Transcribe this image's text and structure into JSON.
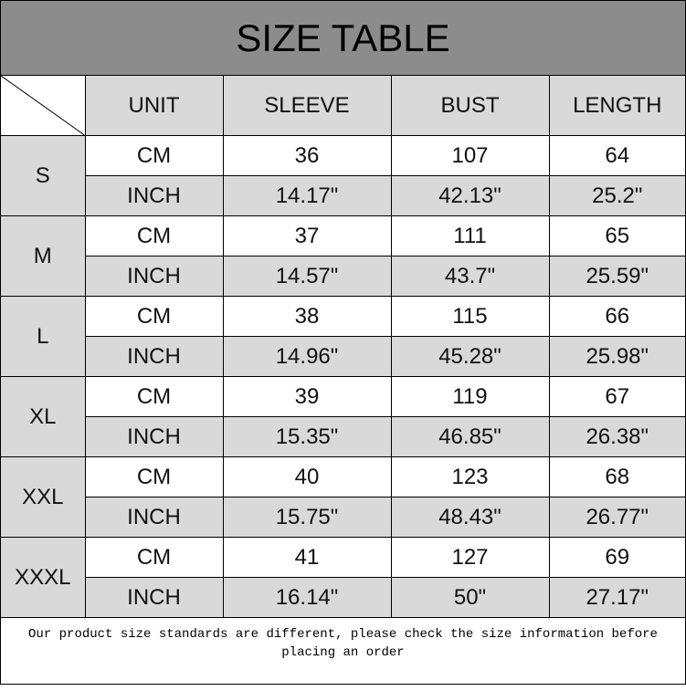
{
  "title": "SIZE TABLE",
  "headers": [
    "UNIT",
    "SLEEVE",
    "BUST",
    "LENGTH"
  ],
  "sizes": [
    {
      "size": "S",
      "cm": [
        "CM",
        "36",
        "107",
        "64"
      ],
      "inch": [
        "INCH",
        "14.17\"",
        "42.13\"",
        "25.2\""
      ]
    },
    {
      "size": "M",
      "cm": [
        "CM",
        "37",
        "111",
        "65"
      ],
      "inch": [
        "INCH",
        "14.57\"",
        "43.7\"",
        "25.59\""
      ]
    },
    {
      "size": "L",
      "cm": [
        "CM",
        "38",
        "115",
        "66"
      ],
      "inch": [
        "INCH",
        "14.96\"",
        "45.28\"",
        "25.98\""
      ]
    },
    {
      "size": "XL",
      "cm": [
        "CM",
        "39",
        "119",
        "67"
      ],
      "inch": [
        "INCH",
        "15.35\"",
        "46.85\"",
        "26.38\""
      ]
    },
    {
      "size": "XXL",
      "cm": [
        "CM",
        "40",
        "123",
        "68"
      ],
      "inch": [
        "INCH",
        "15.75\"",
        "48.43\"",
        "26.77\""
      ]
    },
    {
      "size": "XXXL",
      "cm": [
        "CM",
        "41",
        "127",
        "69"
      ],
      "inch": [
        "INCH",
        "16.14\"",
        "50\"",
        "27.17\""
      ]
    }
  ],
  "footer": "Our product size standards are different, please check the size information before placing an order",
  "colors": {
    "title_bg": "#8c8c8c",
    "cell_gray": "#d9d9d9"
  }
}
